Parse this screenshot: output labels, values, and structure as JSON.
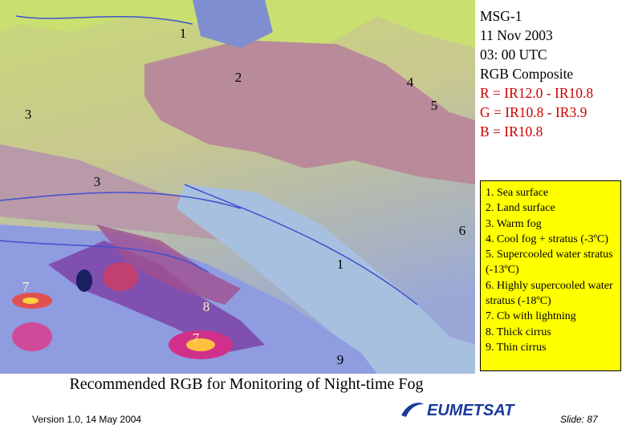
{
  "header": {
    "lines": [
      "MSG-1",
      "11 Nov 2003",
      "03: 00 UTC",
      "RGB Composite"
    ],
    "formula": [
      "R = IR12.0 - IR10.8",
      "G = IR10.8 - IR3.9",
      "B = IR10.8"
    ]
  },
  "image_labels": [
    "1",
    "2",
    "4",
    "5",
    "3",
    "3",
    "6",
    "1",
    "7",
    "8",
    "7",
    "9"
  ],
  "legend": [
    "1. Sea surface",
    "2. Land surface",
    "3. Warm fog",
    "4. Cool fog + stratus (-3ºC)",
    "5. Supercooled water stratus (-13ºC)",
    "6. Highly supercooled water stratus (-18ºC)",
    "7. Cb with lightning",
    "8. Thick cirrus",
    "9. Thin cirrus"
  ],
  "caption": "Recommended RGB for Monitoring of Night-time Fog",
  "footer": {
    "version": "Version 1.0, 14 May 2004",
    "logo": "EUMETSAT",
    "slide": "Slide: 87"
  }
}
